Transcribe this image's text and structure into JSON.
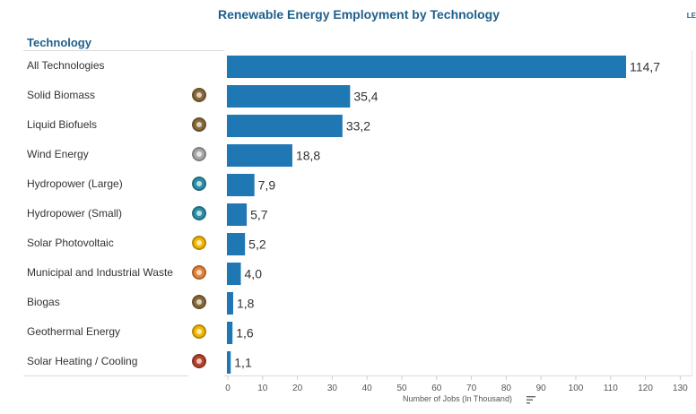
{
  "title": "Renewable Energy Employment by Technology",
  "corner_mark": "LE",
  "column_header": "Technology",
  "sort_icon": "sort-descending-icon",
  "chart_data": {
    "type": "bar",
    "orientation": "horizontal",
    "title": "Renewable Energy Employment by Technology",
    "xlabel": "Number of Jobs (In Thousand)",
    "ylabel": "Technology",
    "xlim": [
      0,
      130
    ],
    "xticks": [
      0,
      10,
      20,
      30,
      40,
      50,
      60,
      70,
      80,
      90,
      100,
      110,
      120,
      130
    ],
    "bar_color": "#1f77b4",
    "categories": [
      "All Technologies",
      "Solid Biomass",
      "Liquid Biofuels",
      "Wind Energy",
      "Hydropower (Large)",
      "Hydropower (Small)",
      "Solar Photovoltaic",
      "Municipal and Industrial Waste",
      "Biogas",
      "Geothermal Energy",
      "Solar Heating / Cooling"
    ],
    "values": [
      114.7,
      35.4,
      33.2,
      18.8,
      7.9,
      5.7,
      5.2,
      4.0,
      1.8,
      1.6,
      1.1
    ],
    "value_labels": [
      "114,7",
      "35,4",
      "33,2",
      "18,8",
      "7,9",
      "5,7",
      "5,2",
      "4,0",
      "1,8",
      "1,6",
      "1,1"
    ]
  },
  "rows": [
    {
      "label": "All Technologies",
      "icon": null,
      "icon_color": null
    },
    {
      "label": "Solid Biomass",
      "icon": "biomass-icon",
      "icon_color": "#8a6a3a"
    },
    {
      "label": "Liquid Biofuels",
      "icon": "biofuels-icon",
      "icon_color": "#8a6a3a"
    },
    {
      "label": "Wind Energy",
      "icon": "wind-icon",
      "icon_color": "#a8a8a8"
    },
    {
      "label": "Hydropower (Large)",
      "icon": "hydropower-icon",
      "icon_color": "#2e8fa8"
    },
    {
      "label": "Hydropower (Small)",
      "icon": "hydropower-icon",
      "icon_color": "#2e8fa8"
    },
    {
      "label": "Solar Photovoltaic",
      "icon": "solar-icon",
      "icon_color": "#f2b705"
    },
    {
      "label": "Municipal and Industrial Waste",
      "icon": "waste-icon",
      "icon_color": "#e8833a"
    },
    {
      "label": "Biogas",
      "icon": "biogas-icon",
      "icon_color": "#8a6a3a"
    },
    {
      "label": "Geothermal Energy",
      "icon": "geothermal-icon",
      "icon_color": "#f2b705"
    },
    {
      "label": "Solar Heating / Cooling",
      "icon": "solar-heating-icon",
      "icon_color": "#b5452a"
    }
  ]
}
